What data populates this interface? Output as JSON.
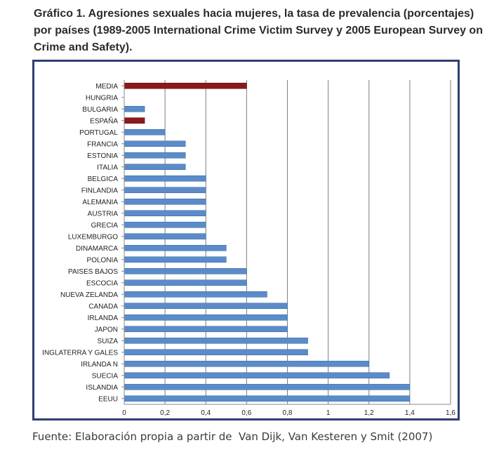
{
  "title": "Gráfico 1. Agresiones sexuales hacia mujeres, la tasa de prevalencia (porcentajes) por países (1989-2005 International Crime Victim Survey y 2005 European Survey on Crime and Safety).",
  "source": "Fuente: Elaboración propia a partir de  Van Dijk, Van Kesteren y Smit (2007)",
  "colors": {
    "bar": "#5b8cc9",
    "highlight": "#8b1a1a",
    "frame": "#2e3f73",
    "grid": "#7f7f7f"
  },
  "chart_data": {
    "type": "bar",
    "orientation": "horizontal",
    "title": "",
    "xlabel": "",
    "ylabel": "",
    "xlim": [
      0,
      1.6
    ],
    "x_ticks": [
      "0",
      "0,2",
      "0,4",
      "0,6",
      "0,8",
      "1",
      "1,2",
      "1,4",
      "1,6"
    ],
    "grid": true,
    "categories": [
      "MEDIA",
      "HUNGRIA",
      "BULGARIA",
      "ESPAÑA",
      "PORTUGAL",
      "FRANCIA",
      "ESTONIA",
      "ITALIA",
      "BELGICA",
      "FINLANDIA",
      "ALEMANIA",
      "AUSTRIA",
      "GRECIA",
      "LUXEMBURGO",
      "DINAMARCA",
      "POLONIA",
      "PAISES BAJOS",
      "ESCOCIA",
      "NUEVA ZELANDA",
      "CANADA",
      "IRLANDA",
      "JAPON",
      "SUIZA",
      "INGLATERRA Y GALES",
      "IRLANDA N",
      "SUECIA",
      "ISLANDIA",
      "EEUU"
    ],
    "values": [
      0.6,
      0,
      0.1,
      0.1,
      0.2,
      0.3,
      0.3,
      0.3,
      0.4,
      0.4,
      0.4,
      0.4,
      0.4,
      0.4,
      0.5,
      0.5,
      0.6,
      0.6,
      0.7,
      0.8,
      0.8,
      0.8,
      0.9,
      0.9,
      1.2,
      1.3,
      1.4,
      1.4
    ],
    "highlighted": [
      "MEDIA",
      "ESPAÑA"
    ]
  }
}
